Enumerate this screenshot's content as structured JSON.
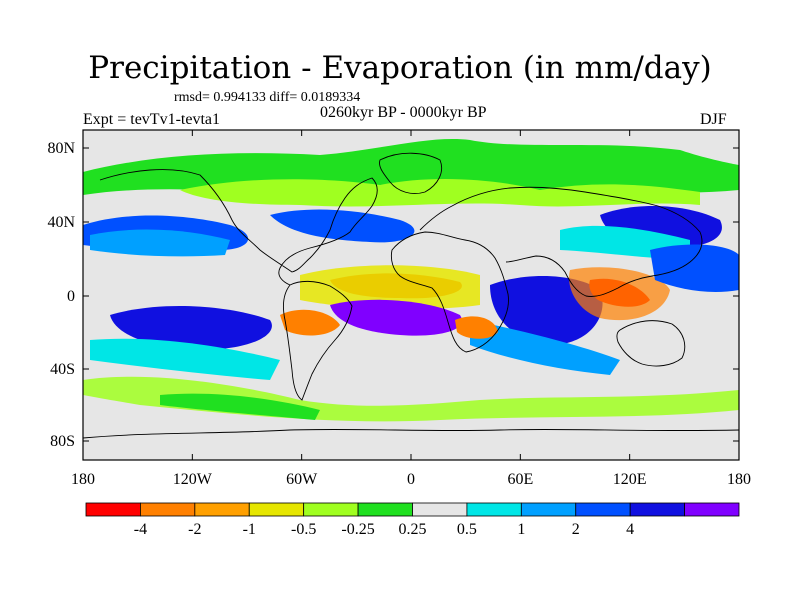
{
  "title": "Precipitation - Evaporation (in mm/day)",
  "stats": "rmsd= 0.994133 diff= 0.0189334",
  "experiment": "Expt = tevTv1-tevta1",
  "period": "0260kyr BP - 0000kyr BP",
  "season": "DJF",
  "map": {
    "x_ticks": [
      "180",
      "120W",
      "60W",
      "0",
      "60E",
      "120E",
      "180"
    ],
    "y_ticks": [
      "80N",
      "40N",
      "0",
      "40S",
      "80S"
    ],
    "background_color": "#e6e6e6"
  },
  "colorbar": {
    "colors": [
      "#ff0000",
      "#ff8000",
      "#ffa000",
      "#e6e600",
      "#a0ff20",
      "#20e020",
      "#e6e6e6",
      "#00e6e6",
      "#00a0ff",
      "#0050ff",
      "#1010e0",
      "#8000ff"
    ],
    "labels": [
      "-4",
      "-2",
      "-1",
      "-0.5",
      "-0.25",
      "0.25",
      "0.5",
      "1",
      "2",
      "4"
    ]
  }
}
